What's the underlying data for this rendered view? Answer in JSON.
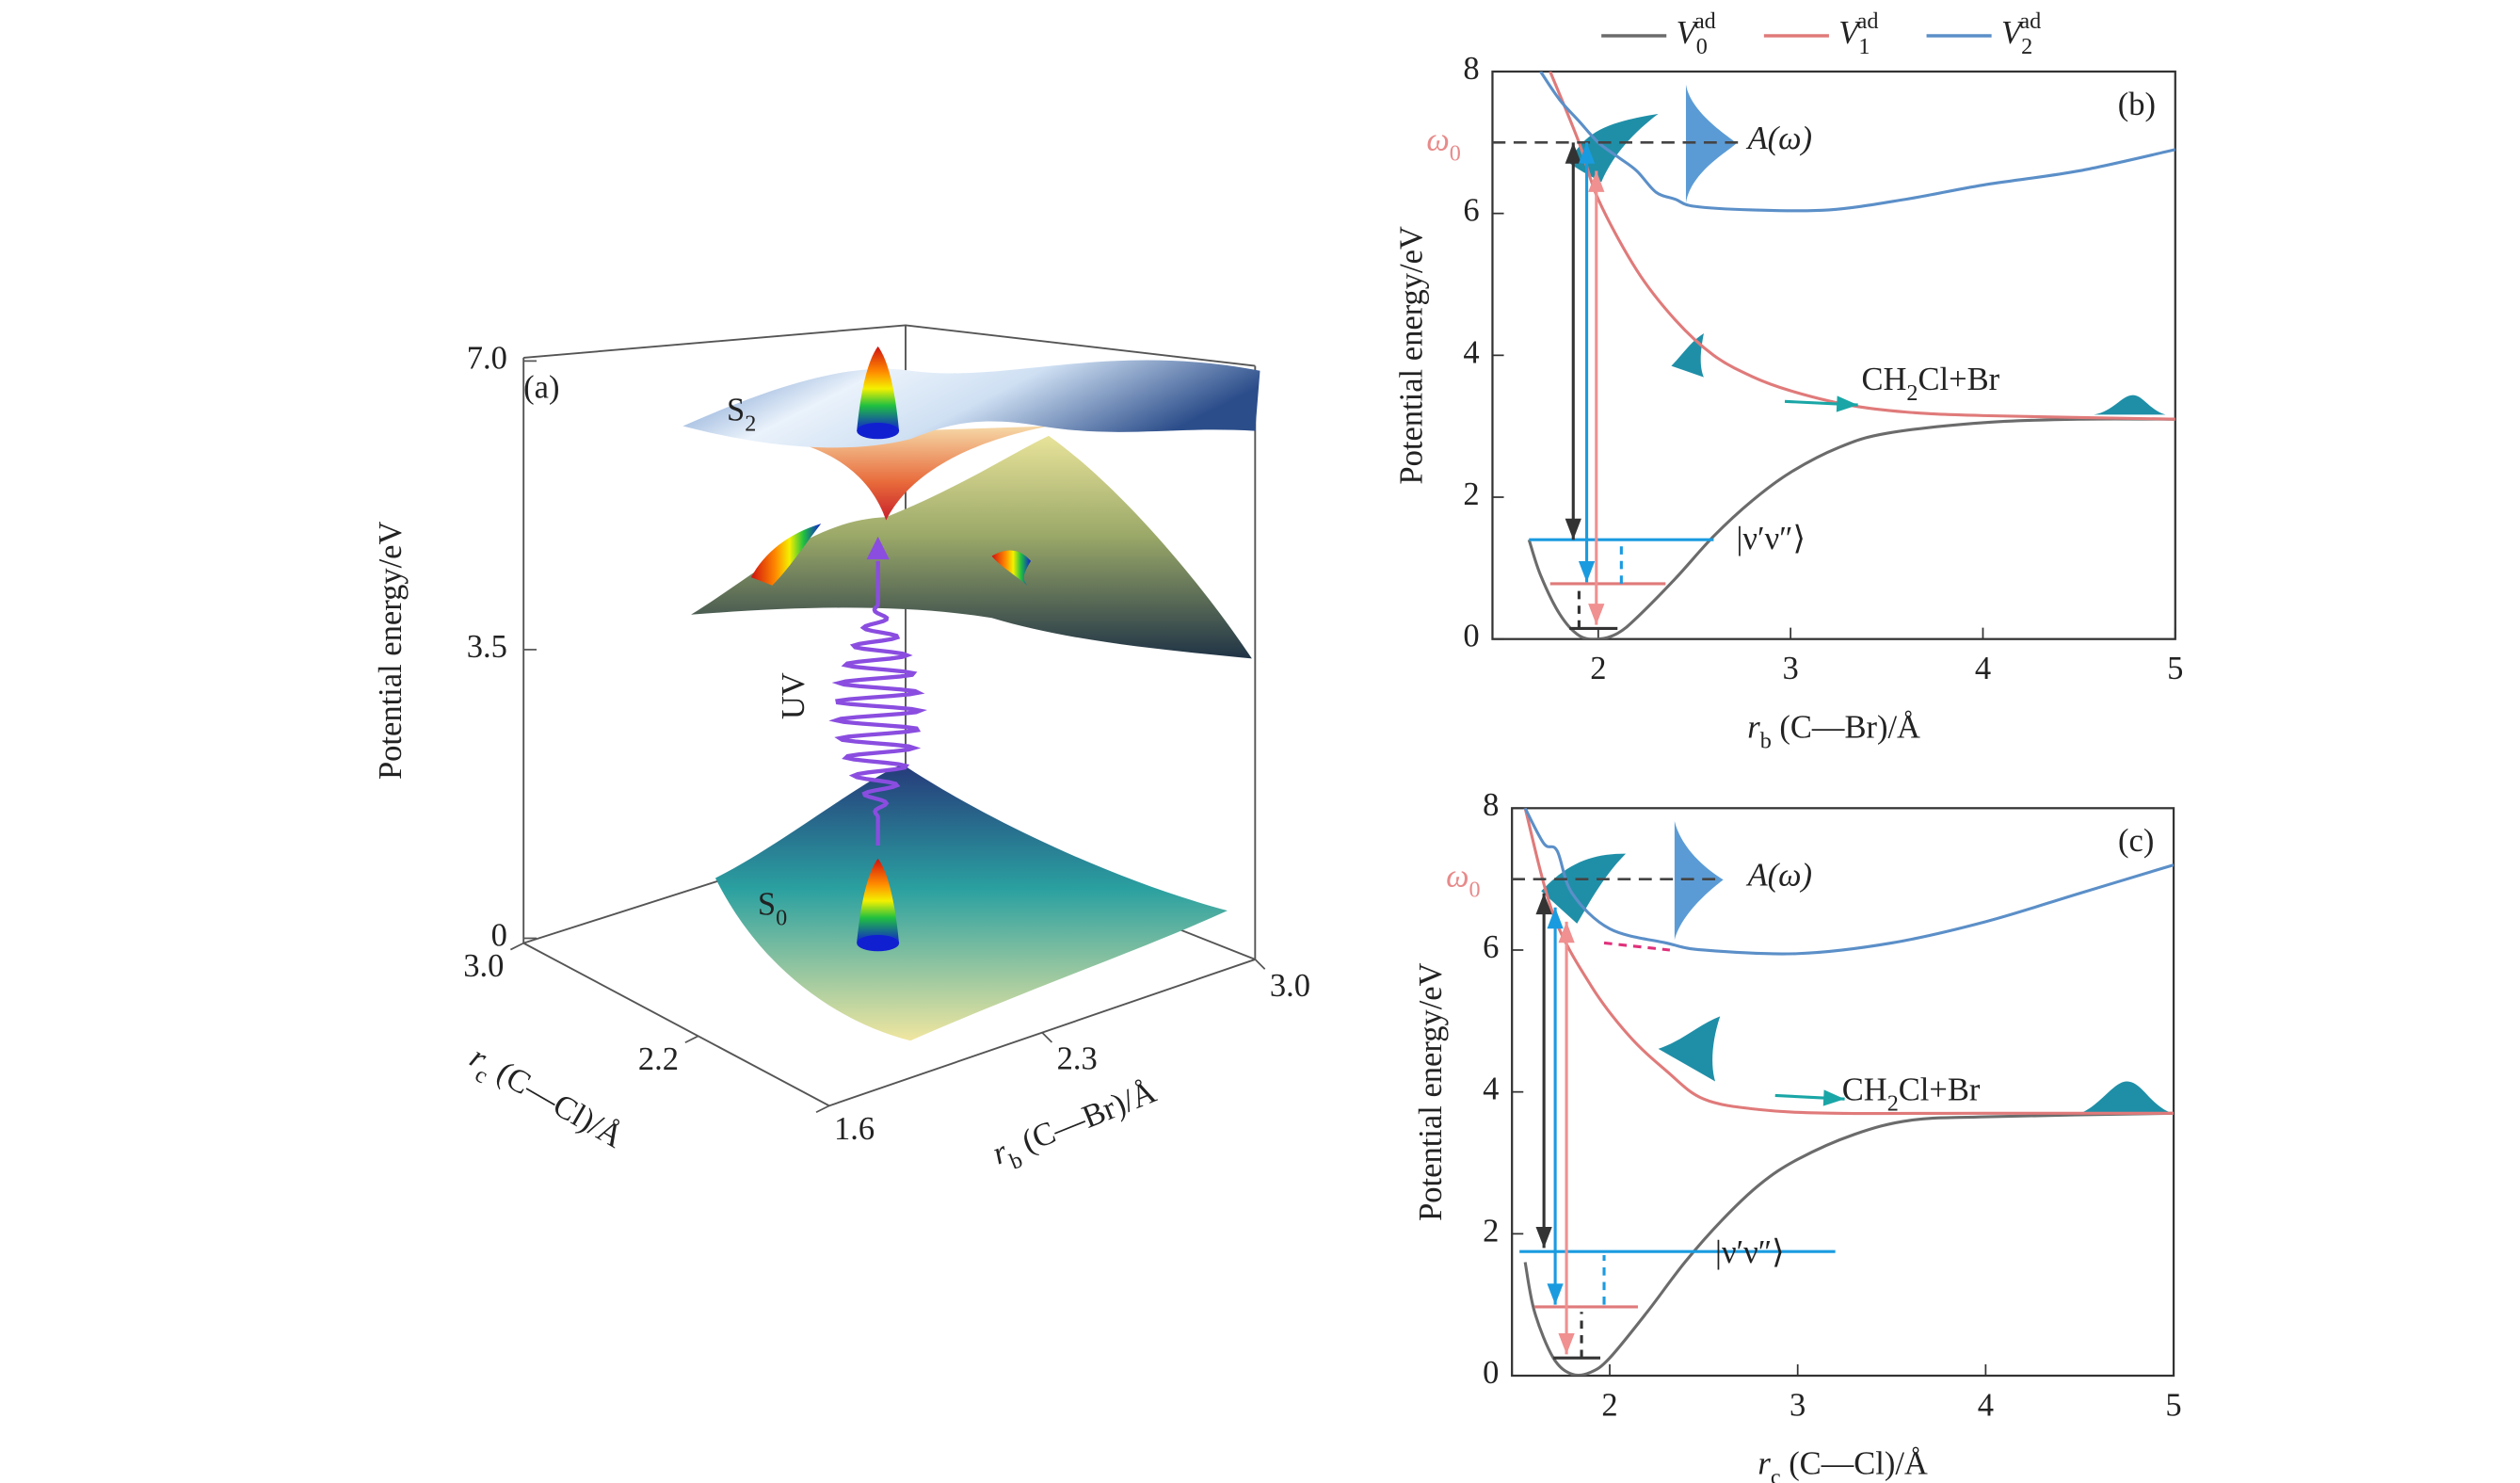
{
  "chart_data": [
    {
      "type": "surface3d",
      "panel_label": "(a)",
      "zlabel": "Potential energy/eV",
      "zlim": [
        0,
        7
      ],
      "zticks": [
        0,
        3.5,
        {
          "value": 7,
          "label": "7.0"
        }
      ],
      "xlabel": [
        "r",
        "c",
        " (C—Cl)/Å"
      ],
      "xlim": [
        3,
        1.6
      ],
      "xticks": [
        {
          "value": 3,
          "label": "3.0"
        },
        2.2,
        1.6
      ],
      "ylabel": [
        "r",
        "b",
        " (C—Br)/Å"
      ],
      "ylim": [
        1.6,
        3
      ],
      "yticks": [
        2.3,
        {
          "value": 3,
          "label": "3.0"
        }
      ],
      "annotations": {
        "upper_state": [
          "S",
          "2"
        ],
        "ground_state": [
          "S",
          "0"
        ],
        "pulse": "UV"
      }
    },
    {
      "type": "line",
      "panel_label": "(b)",
      "legend": "top",
      "xlabel": [
        "r",
        "b",
        " (C—Br)/Å"
      ],
      "ylabel": "Potential energy/eV",
      "xlim": [
        1.45,
        5
      ],
      "xticks": [
        2,
        3,
        4,
        5
      ],
      "ylim": [
        0,
        8
      ],
      "yticks": [
        0,
        2,
        4,
        6,
        8
      ],
      "series": [
        {
          "name": [
            "V",
            "0",
            "ad"
          ],
          "color": "#6b6b6b",
          "x": [
            1.64,
            1.7,
            1.8,
            1.9,
            2.0,
            2.1,
            2.2,
            2.4,
            2.6,
            2.8,
            3.0,
            3.25,
            3.5,
            4,
            4.5,
            5
          ],
          "values": [
            1.4,
            0.9,
            0.35,
            0.05,
            0,
            0.08,
            0.3,
            0.85,
            1.45,
            1.95,
            2.35,
            2.7,
            2.9,
            3.05,
            3.1,
            3.1
          ]
        },
        {
          "name": [
            "V",
            "1",
            "ad"
          ],
          "color": "#e07a7a",
          "x": [
            1.75,
            1.9,
            2.0,
            2.2,
            2.4,
            2.6,
            2.8,
            3.0,
            3.3,
            3.6,
            4,
            5
          ],
          "values": [
            8,
            7.0,
            6.2,
            5.2,
            4.5,
            4.0,
            3.7,
            3.5,
            3.3,
            3.2,
            3.15,
            3.1
          ]
        },
        {
          "name": [
            "V",
            "2",
            "ad"
          ],
          "color": "#5b8fc8",
          "x": [
            1.7,
            1.8,
            1.9,
            2.0,
            2.1,
            2.2,
            2.3,
            2.4,
            2.5,
            2.8,
            3.2,
            3.6,
            4,
            4.5,
            5
          ],
          "values": [
            8,
            7.6,
            7.3,
            7.0,
            6.8,
            6.6,
            6.3,
            6.2,
            6.1,
            6.05,
            6.05,
            6.2,
            6.4,
            6.6,
            6.9
          ]
        }
      ],
      "reference_line": {
        "value": 7,
        "label": [
          "ω",
          "0"
        ],
        "color": "#e88a8a",
        "x_end": 2.73
      },
      "levels": [
        {
          "value": 1.4,
          "x": [
            1.64,
            2.6
          ],
          "color": "#1a9be0"
        },
        {
          "value": 0.78,
          "x": [
            1.75,
            2.35
          ],
          "color": "#e07a7a"
        },
        {
          "value": 0.15,
          "x": [
            1.85,
            2.1
          ],
          "color": "#333333"
        }
      ],
      "arrows": [
        {
          "x": [
            1.87,
            1.87
          ],
          "y": [
            7,
            1.4
          ],
          "color": "#333333",
          "heads": "both"
        },
        {
          "x": [
            1.94,
            1.94
          ],
          "y": [
            7,
            0.8
          ],
          "color": "#1a9be0",
          "heads": "both"
        },
        {
          "x": [
            1.99,
            1.99
          ],
          "y": [
            0.2,
            6.6
          ],
          "color": "#f09090",
          "heads": "both"
        },
        {
          "x": [
            2.97,
            3.35
          ],
          "y": [
            3.35,
            3.3
          ],
          "color": "#1aa6a6",
          "heads": "end"
        },
        {
          "x": [
            1.9,
            1.9
          ],
          "y": [
            0.15,
            0.75
          ],
          "color": "#333333",
          "heads": "none",
          "dash": true
        },
        {
          "x": [
            2.12,
            2.12
          ],
          "y": [
            0.78,
            1.35
          ],
          "color": "#1a9be0",
          "heads": "none",
          "dash": true
        }
      ],
      "annotations": {
        "spectrum": "A(ω)",
        "products": [
          "CH",
          "2",
          "Cl+Br"
        ],
        "state": "|ν′ν″⟩"
      }
    },
    {
      "type": "line",
      "panel_label": "(c)",
      "xlabel": [
        "r",
        "c",
        " (C—Cl)/Å"
      ],
      "ylabel": "Potential energy/eV",
      "xlim": [
        1.48,
        5
      ],
      "xticks": [
        2,
        3,
        4,
        5
      ],
      "ylim": [
        0,
        8
      ],
      "yticks": [
        0,
        2,
        4,
        6,
        8
      ],
      "series": [
        {
          "color": "#6b6b6b",
          "x": [
            1.55,
            1.6,
            1.7,
            1.8,
            1.9,
            2.0,
            2.2,
            2.4,
            2.6,
            2.8,
            3.0,
            3.3,
            3.6,
            4,
            5
          ],
          "values": [
            1.6,
            0.9,
            0.25,
            0.02,
            0.05,
            0.25,
            0.9,
            1.6,
            2.2,
            2.7,
            3.05,
            3.4,
            3.6,
            3.65,
            3.7
          ]
        },
        {
          "color": "#e07a7a",
          "x": [
            1.55,
            1.7,
            1.9,
            2.1,
            2.3,
            2.5,
            2.8,
            3.2,
            4,
            5
          ],
          "values": [
            8,
            6.5,
            5.5,
            4.8,
            4.3,
            3.9,
            3.75,
            3.7,
            3.7,
            3.7
          ]
        },
        {
          "color": "#5b8fc8",
          "x": [
            1.55,
            1.65,
            1.72,
            1.8,
            2.0,
            2.3,
            2.5,
            3.0,
            3.5,
            4,
            4.5,
            5
          ],
          "values": [
            8,
            7.5,
            7.4,
            6.8,
            6.3,
            6.1,
            6.0,
            5.95,
            6.1,
            6.4,
            6.8,
            7.2
          ]
        }
      ],
      "reference_line": {
        "value": 7,
        "label": [
          "ω",
          "0"
        ],
        "color": "#e88a8a",
        "x_end": 2.6
      },
      "levels": [
        {
          "value": 1.75,
          "x": [
            1.52,
            3.2
          ],
          "color": "#1a9be0"
        },
        {
          "value": 0.97,
          "x": [
            1.6,
            2.15
          ],
          "color": "#e07a7a"
        },
        {
          "value": 0.25,
          "x": [
            1.7,
            1.95
          ],
          "color": "#333333"
        }
      ],
      "arrows": [
        {
          "x": [
            1.65,
            1.65
          ],
          "y": [
            6.8,
            1.8
          ],
          "color": "#333333",
          "heads": "both"
        },
        {
          "x": [
            1.71,
            1.71
          ],
          "y": [
            6.6,
            1.0
          ],
          "color": "#1a9be0",
          "heads": "both"
        },
        {
          "x": [
            1.77,
            1.77
          ],
          "y": [
            6.4,
            0.3
          ],
          "color": "#f09090",
          "heads": "both"
        },
        {
          "x": [
            2.88,
            3.25
          ],
          "y": [
            3.95,
            3.9
          ],
          "color": "#1aa6a6",
          "heads": "end"
        },
        {
          "x": [
            1.97,
            2.32
          ],
          "y": [
            6.1,
            6.0
          ],
          "color": "#e0307a",
          "heads": "none",
          "dash": true
        },
        {
          "x": [
            1.85,
            1.85
          ],
          "y": [
            0.25,
            0.9
          ],
          "color": "#333333",
          "heads": "none",
          "dash": true
        },
        {
          "x": [
            1.97,
            1.97
          ],
          "y": [
            1.0,
            1.7
          ],
          "color": "#1a9be0",
          "heads": "none",
          "dash": true
        }
      ],
      "annotations": {
        "spectrum": "A(ω)",
        "products": [
          "CH",
          "2",
          "Cl+Br"
        ],
        "state": "|ν′ν″⟩"
      }
    }
  ]
}
